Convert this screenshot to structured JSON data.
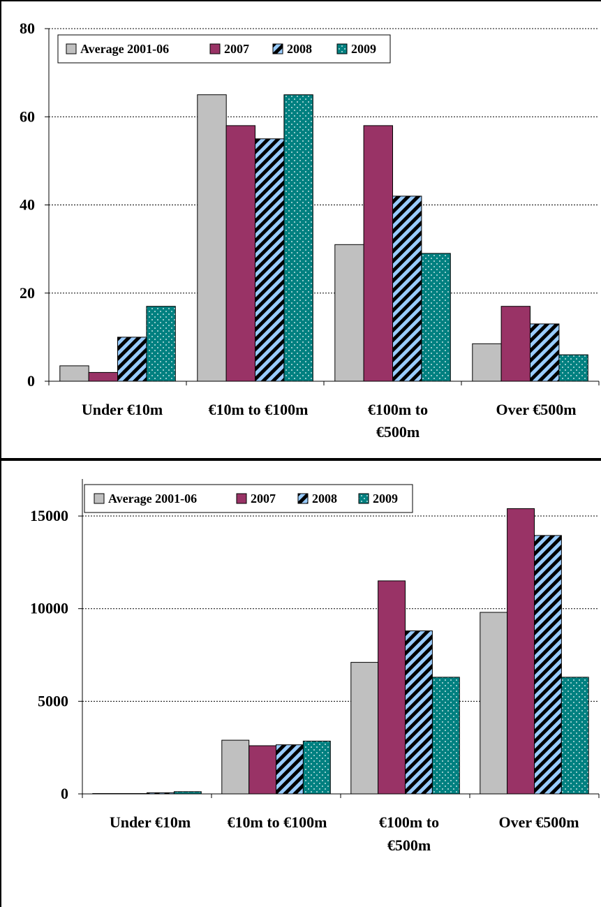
{
  "series_styles": [
    {
      "fill": "#c0c0c0",
      "pattern": "solid"
    },
    {
      "fill": "#993366",
      "pattern": "solid"
    },
    {
      "fill": "#99ccff",
      "pattern": "diagonal-stripes-black"
    },
    {
      "fill": "#008080",
      "pattern": "white-dots"
    }
  ],
  "chart_data": [
    {
      "type": "bar",
      "title": "",
      "xlabel": "",
      "ylabel": "",
      "ylim": [
        0,
        80
      ],
      "yticks": [
        "0",
        "20",
        "40",
        "60",
        "80"
      ],
      "ytick_values": [
        0,
        20,
        40,
        60,
        80
      ],
      "grid": "horizontal dotted",
      "legend_position": "top",
      "categories": [
        "Under €10m",
        "€10m to €100m",
        "€100m to €500m",
        "Over €500m"
      ],
      "category_lines": [
        [
          "Under €10m"
        ],
        [
          "€10m to €100m"
        ],
        [
          "€100m to",
          "€500m"
        ],
        [
          "Over €500m"
        ]
      ],
      "series": [
        {
          "name": "Average 2001-06",
          "values": [
            3.5,
            65,
            31,
            8.5
          ]
        },
        {
          "name": "2007",
          "values": [
            2,
            58,
            58,
            17
          ]
        },
        {
          "name": "2008",
          "values": [
            10,
            55,
            42,
            13
          ]
        },
        {
          "name": "2009",
          "values": [
            17,
            65,
            29,
            6
          ]
        }
      ]
    },
    {
      "type": "bar",
      "title": "",
      "xlabel": "",
      "ylabel": "",
      "ylim": [
        0,
        17000
      ],
      "yticks": [
        "0",
        "5000",
        "10000",
        "15000"
      ],
      "ytick_values": [
        0,
        5000,
        10000,
        15000
      ],
      "grid": "horizontal dotted",
      "legend_position": "top",
      "categories": [
        "Under €10m",
        "€10m to €100m",
        "€100m to €500m",
        "Over €500m"
      ],
      "category_lines": [
        [
          "Under €10m"
        ],
        [
          "€10m to €100m"
        ],
        [
          "€100m to",
          "€500m"
        ],
        [
          "Over €500m"
        ]
      ],
      "series": [
        {
          "name": "Average 2001-06",
          "values": [
            20,
            2900,
            7100,
            9800
          ]
        },
        {
          "name": "2007",
          "values": [
            20,
            2600,
            11500,
            15400
          ]
        },
        {
          "name": "2008",
          "values": [
            60,
            2650,
            8800,
            13950
          ]
        },
        {
          "name": "2009",
          "values": [
            120,
            2850,
            6300,
            6300
          ]
        }
      ]
    }
  ]
}
